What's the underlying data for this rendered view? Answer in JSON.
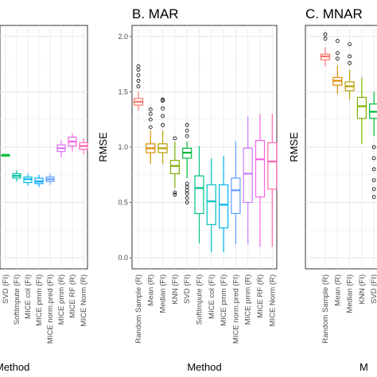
{
  "chart_data": [
    {
      "panel": "A",
      "type": "box",
      "title": "",
      "xlabel": "Method",
      "ylabel": "",
      "ylim": [
        0,
        2.1
      ],
      "grid": true,
      "categories": [
        "SVD (FI)",
        "SoftImpute (FI)",
        "MICE col (FI)",
        "MICE pmm (FI)",
        "MICE norm.pred (FI)",
        "MICE pmm (R)",
        "MICE RF (R)",
        "MICE Norm (R)"
      ],
      "colors": [
        "#00BA38",
        "#00BFA0",
        "#00B8E5",
        "#00A5FF",
        "#619CFF",
        "#DF70F8",
        "#F564E3",
        "#FF64B0"
      ],
      "boxes": [
        {
          "q1": 0.92,
          "median": 0.93,
          "q3": 0.93,
          "lo": 0.92,
          "hi": 0.94
        },
        {
          "q1": 0.72,
          "median": 0.74,
          "q3": 0.76,
          "lo": 0.69,
          "hi": 0.79
        },
        {
          "q1": 0.68,
          "median": 0.71,
          "q3": 0.73,
          "lo": 0.65,
          "hi": 0.76
        },
        {
          "q1": 0.67,
          "median": 0.69,
          "q3": 0.72,
          "lo": 0.64,
          "hi": 0.75
        },
        {
          "q1": 0.69,
          "median": 0.71,
          "q3": 0.73,
          "lo": 0.66,
          "hi": 0.76
        },
        {
          "q1": 0.96,
          "median": 0.99,
          "q3": 1.02,
          "lo": 0.91,
          "hi": 1.06
        },
        {
          "q1": 1.01,
          "median": 1.05,
          "q3": 1.09,
          "lo": 0.96,
          "hi": 1.12
        },
        {
          "q1": 0.98,
          "median": 1.01,
          "q3": 1.04,
          "lo": 0.94,
          "hi": 1.08
        }
      ]
    },
    {
      "panel": "B",
      "type": "box",
      "title": "B. MAR",
      "xlabel": "Method",
      "ylabel": "RMSE",
      "ylim": [
        -0.1,
        2.1
      ],
      "yticks": [
        "0.0",
        "0.5",
        "1.0",
        "1.5",
        "2.0"
      ],
      "grid": true,
      "categories": [
        "Random Sample (R)",
        "Mean (R)",
        "Median (FI)",
        "KNN (FI)",
        "SVD (FI)",
        "SoftImpute (FI)",
        "MICE col (FI)",
        "MICE pmm (FI)",
        "MICE norm.pred (FI)",
        "MICE pmm (R)",
        "MICE RF (R)",
        "MICE Norm (R)"
      ],
      "colors": [
        "#F8766D",
        "#DE8C00",
        "#B79F00",
        "#7CAE00",
        "#00BA38",
        "#00C08B",
        "#00BFC4",
        "#00B4F0",
        "#619CFF",
        "#C77CFF",
        "#F564E3",
        "#FF64B0"
      ],
      "boxes": [
        {
          "q1": 1.38,
          "median": 1.41,
          "q3": 1.44,
          "lo": 1.33,
          "hi": 1.5,
          "outliers": [
            1.55,
            1.6,
            1.65,
            1.7,
            1.73
          ]
        },
        {
          "q1": 0.95,
          "median": 0.99,
          "q3": 1.03,
          "lo": 0.85,
          "hi": 1.15,
          "outliers": [
            1.18,
            1.25,
            1.3,
            1.34
          ]
        },
        {
          "q1": 0.95,
          "median": 0.99,
          "q3": 1.03,
          "lo": 0.85,
          "hi": 1.15,
          "outliers": [
            1.2,
            1.28,
            1.35,
            1.42,
            1.43
          ]
        },
        {
          "q1": 0.76,
          "median": 0.83,
          "q3": 0.88,
          "lo": 0.63,
          "hi": 1.05,
          "outliers": [
            0.57,
            0.59,
            1.08
          ]
        },
        {
          "q1": 0.9,
          "median": 0.95,
          "q3": 0.99,
          "lo": 0.72,
          "hi": 1.05,
          "outliers": [
            0.5,
            0.54,
            0.58,
            0.61,
            0.64,
            0.67,
            1.1,
            1.15,
            1.2
          ]
        },
        {
          "q1": 0.4,
          "median": 0.63,
          "q3": 0.74,
          "lo": 0.13,
          "hi": 1.01
        },
        {
          "q1": 0.3,
          "median": 0.51,
          "q3": 0.66,
          "lo": 0.05,
          "hi": 0.9
        },
        {
          "q1": 0.27,
          "median": 0.48,
          "q3": 0.66,
          "lo": 0.05,
          "hi": 0.92
        },
        {
          "q1": 0.4,
          "median": 0.61,
          "q3": 0.72,
          "lo": 0.12,
          "hi": 1.05
        },
        {
          "q1": 0.5,
          "median": 0.76,
          "q3": 0.99,
          "lo": 0.12,
          "hi": 1.28
        },
        {
          "q1": 0.55,
          "median": 0.89,
          "q3": 1.06,
          "lo": 0.1,
          "hi": 1.3
        },
        {
          "q1": 0.62,
          "median": 0.87,
          "q3": 1.04,
          "lo": 0.1,
          "hi": 1.3
        }
      ]
    },
    {
      "panel": "C",
      "type": "box",
      "title": "C. MNAR",
      "xlabel": "",
      "ylabel": "RMSE",
      "ylim": [
        -0.1,
        2.1
      ],
      "grid": true,
      "categories": [
        "Random Sample (R)",
        "Mean (R)",
        "Median (FI)",
        "KNN (FI)",
        "SVD (FI)"
      ],
      "colors": [
        "#F8766D",
        "#DE8C00",
        "#B79F00",
        "#7CAE00",
        "#00BA38"
      ],
      "boxes": [
        {
          "q1": 1.79,
          "median": 1.82,
          "q3": 1.84,
          "lo": 1.73,
          "hi": 1.9,
          "outliers": [
            1.98,
            2.02
          ]
        },
        {
          "q1": 1.56,
          "median": 1.6,
          "q3": 1.63,
          "lo": 1.48,
          "hi": 1.74,
          "outliers": [
            1.8,
            1.85,
            1.96
          ]
        },
        {
          "q1": 1.51,
          "median": 1.55,
          "q3": 1.59,
          "lo": 1.43,
          "hi": 1.7,
          "outliers": [
            1.76,
            1.82,
            1.93
          ]
        },
        {
          "q1": 1.26,
          "median": 1.37,
          "q3": 1.45,
          "lo": 1.03,
          "hi": 1.63
        },
        {
          "q1": 1.26,
          "median": 1.32,
          "q3": 1.39,
          "lo": 1.1,
          "hi": 1.5,
          "outliers": [
            0.55,
            0.62,
            0.7,
            0.8,
            0.9,
            1.0
          ]
        }
      ]
    }
  ]
}
